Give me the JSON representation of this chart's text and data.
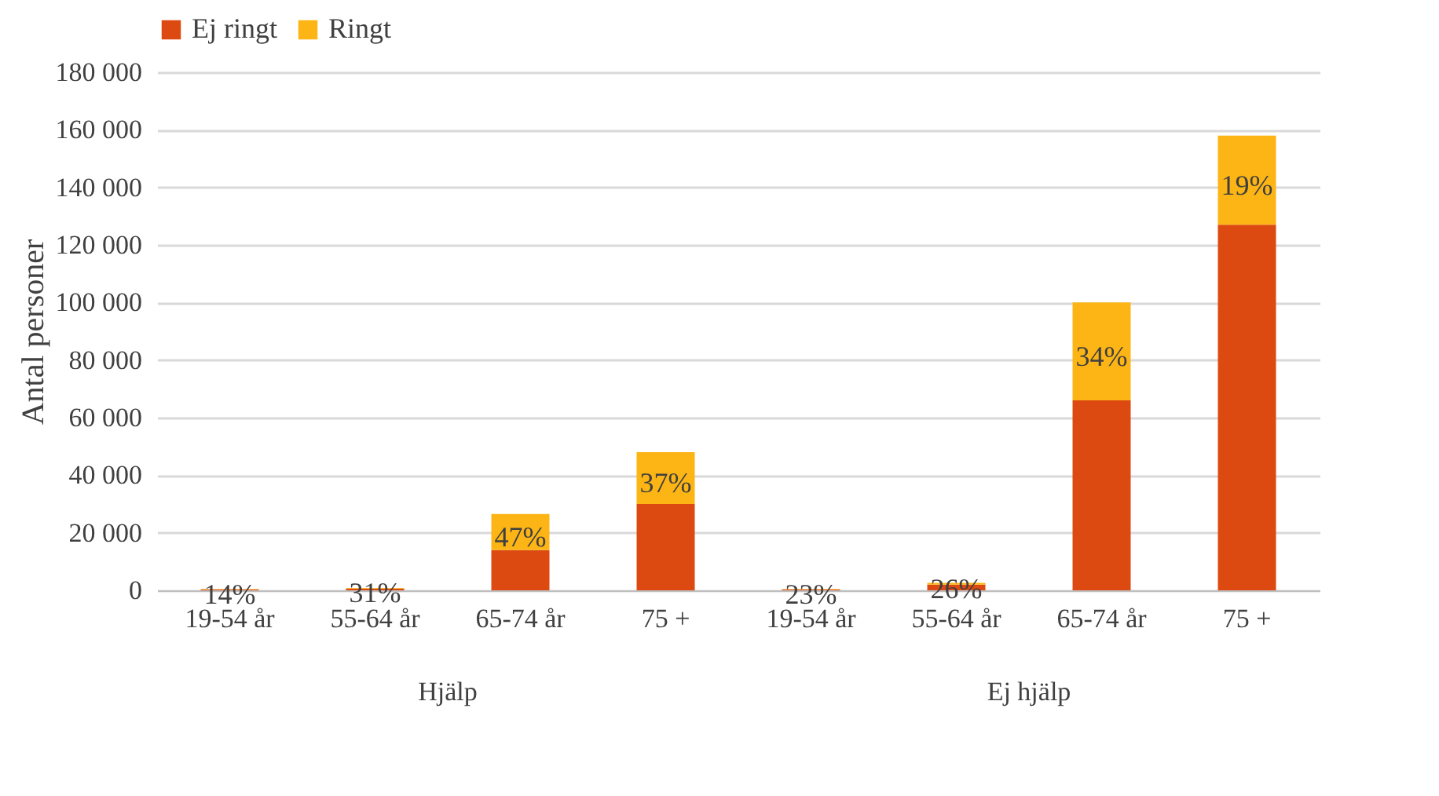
{
  "chart_data": {
    "type": "bar",
    "stacked": true,
    "ylabel": "Antal personer",
    "categories": [
      "19-54 år",
      "55-64 år",
      "65-74 år",
      "75 +",
      "19-54 år",
      "55-64 år",
      "65-74 år",
      "75 +"
    ],
    "series": [
      {
        "name": "Ej ringt",
        "color": "#dc4a12",
        "values": [
          300,
          600,
          14000,
          30000,
          300,
          2000,
          66000,
          127000
        ]
      },
      {
        "name": "Ringt",
        "color": "#fdb515",
        "values": [
          100,
          200,
          12500,
          18000,
          100,
          600,
          34000,
          31000
        ]
      }
    ],
    "ylim": [
      0,
      180000
    ],
    "yticks": [
      {
        "value": 0,
        "label": "0"
      },
      {
        "value": 20000,
        "label": "20 000"
      },
      {
        "value": 40000,
        "label": "40 000"
      },
      {
        "value": 60000,
        "label": "60 000"
      },
      {
        "value": 80000,
        "label": "80 000"
      },
      {
        "value": 100000,
        "label": "100 000"
      },
      {
        "value": 120000,
        "label": "120 000"
      },
      {
        "value": 140000,
        "label": "140 000"
      },
      {
        "value": 160000,
        "label": "160 000"
      },
      {
        "value": 180000,
        "label": "180 000"
      }
    ],
    "grid": "y",
    "legend": "top",
    "annotations": [
      "14%",
      "31%",
      "47%",
      "37%",
      "23%",
      "26%",
      "34%",
      "19%",
      "Hjälp",
      "Ej hjälp"
    ]
  }
}
